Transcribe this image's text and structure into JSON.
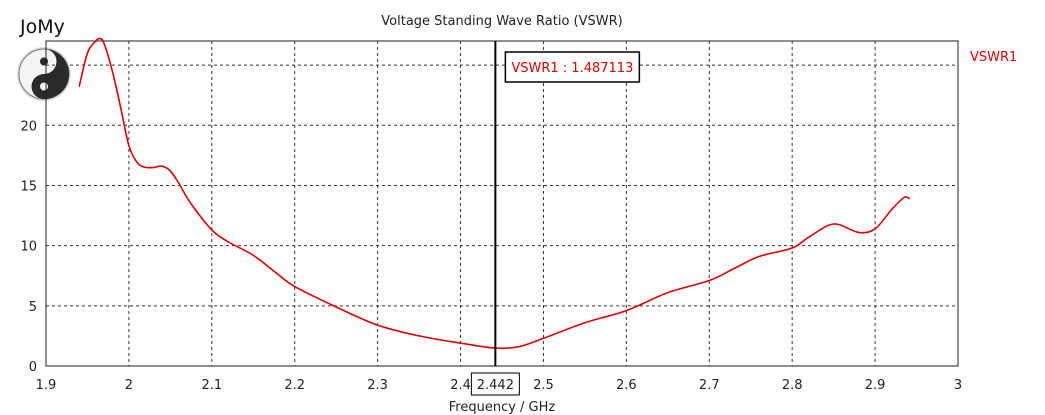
{
  "logo": {
    "text": "JoMy"
  },
  "chart_data": {
    "type": "line",
    "title": "Voltage Standing Wave Ratio (VSWR)",
    "xlabel": "Frequency / GHz",
    "ylabel": "",
    "xlim": [
      1.9,
      3.0
    ],
    "ylim": [
      0,
      27
    ],
    "x_ticks": [
      "1.9",
      "2",
      "2.1",
      "2.2",
      "2.3",
      "2.4",
      "2.5",
      "2.6",
      "2.7",
      "2.8",
      "2.9",
      "3"
    ],
    "y_ticks": [
      "0",
      "5",
      "10",
      "15",
      "20"
    ],
    "grid": true,
    "legend_position": "top-right",
    "series": [
      {
        "name": "VSWR1",
        "color": "#e00000",
        "x": [
          1.94,
          1.95,
          1.96,
          1.965,
          1.97,
          1.98,
          1.99,
          2.0,
          2.01,
          2.02,
          2.03,
          2.04,
          2.05,
          2.06,
          2.07,
          2.08,
          2.1,
          2.12,
          2.15,
          2.18,
          2.2,
          2.25,
          2.3,
          2.35,
          2.4,
          2.442,
          2.47,
          2.5,
          2.55,
          2.6,
          2.65,
          2.7,
          2.73,
          2.76,
          2.8,
          2.82,
          2.85,
          2.88,
          2.9,
          2.92,
          2.935,
          2.942
        ],
        "values": [
          23.2,
          26.0,
          27.0,
          27.2,
          26.8,
          24.5,
          21.5,
          18.3,
          16.9,
          16.5,
          16.5,
          16.6,
          16.2,
          15.2,
          14.0,
          13.0,
          11.3,
          10.3,
          9.2,
          7.6,
          6.6,
          4.9,
          3.4,
          2.5,
          1.9,
          1.49,
          1.6,
          2.3,
          3.6,
          4.6,
          6.1,
          7.1,
          8.1,
          9.1,
          9.8,
          10.7,
          11.8,
          11.1,
          11.4,
          13.0,
          14.0,
          13.9
        ]
      }
    ],
    "marker": {
      "x": 2.442,
      "x_label": "2.442",
      "readout": "VSWR1 : 1.487113"
    }
  }
}
